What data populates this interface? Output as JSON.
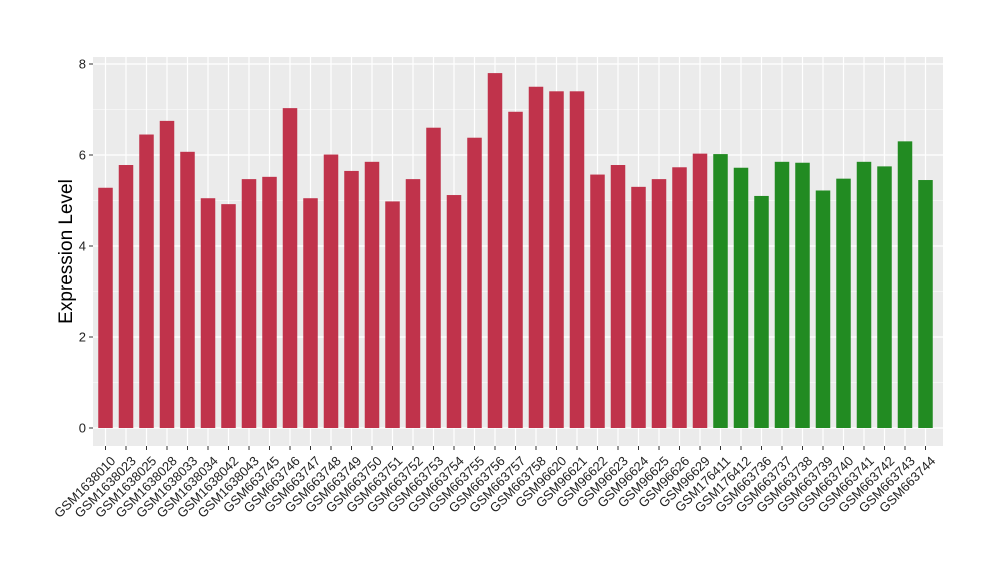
{
  "chart_data": {
    "type": "bar",
    "ylabel": "Expression Level",
    "xlabel": "",
    "title": "",
    "ylim": [
      0,
      8.15
    ],
    "yticks": [
      0,
      2,
      4,
      6,
      8
    ],
    "grid": true,
    "categories": [
      "GSM1638010",
      "GSM1638023",
      "GSM1638025",
      "GSM1638028",
      "GSM1638033",
      "GSM1638034",
      "GSM1638042",
      "GSM1638043",
      "GSM663745",
      "GSM663746",
      "GSM663747",
      "GSM663748",
      "GSM663749",
      "GSM663750",
      "GSM663751",
      "GSM663752",
      "GSM663753",
      "GSM663754",
      "GSM663755",
      "GSM663756",
      "GSM663757",
      "GSM663758",
      "GSM96620",
      "GSM96621",
      "GSM96622",
      "GSM96623",
      "GSM96624",
      "GSM96625",
      "GSM96626",
      "GSM96629",
      "GSM176411",
      "GSM176412",
      "GSM663736",
      "GSM663737",
      "GSM663738",
      "GSM663739",
      "GSM663740",
      "GSM663741",
      "GSM663742",
      "GSM663743",
      "GSM663744"
    ],
    "values": [
      5.28,
      5.78,
      6.45,
      6.75,
      6.07,
      5.05,
      4.92,
      5.47,
      5.52,
      7.03,
      5.05,
      6.01,
      5.65,
      5.85,
      4.98,
      5.47,
      6.6,
      5.12,
      6.38,
      7.8,
      6.95,
      7.5,
      7.4,
      7.4,
      5.57,
      5.78,
      5.3,
      5.47,
      5.73,
      6.03,
      6.02,
      5.72,
      5.1,
      5.85,
      5.83,
      5.22,
      5.48,
      5.85,
      5.75,
      6.3,
      5.45
    ],
    "colors": {
      "group1": "#c0334b",
      "group2": "#228b22",
      "panel_background": "#ebebeb",
      "grid_line": "#ffffff"
    },
    "group_split_index": 30
  }
}
